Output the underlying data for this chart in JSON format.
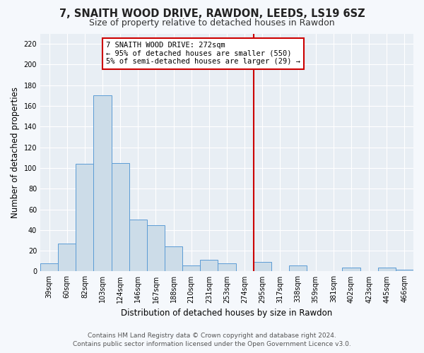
{
  "title": "7, SNAITH WOOD DRIVE, RAWDON, LEEDS, LS19 6SZ",
  "subtitle": "Size of property relative to detached houses in Rawdon",
  "xlabel": "Distribution of detached houses by size in Rawdon",
  "ylabel": "Number of detached properties",
  "bar_labels": [
    "39sqm",
    "60sqm",
    "82sqm",
    "103sqm",
    "124sqm",
    "146sqm",
    "167sqm",
    "188sqm",
    "210sqm",
    "231sqm",
    "253sqm",
    "274sqm",
    "295sqm",
    "317sqm",
    "338sqm",
    "359sqm",
    "381sqm",
    "402sqm",
    "423sqm",
    "445sqm",
    "466sqm"
  ],
  "bar_values": [
    8,
    27,
    104,
    170,
    105,
    50,
    45,
    24,
    6,
    11,
    8,
    0,
    9,
    0,
    6,
    0,
    0,
    4,
    0,
    4,
    2
  ],
  "bar_color": "#ccdce8",
  "bar_edge_color": "#5b9bd5",
  "vline_x_index": 11,
  "vline_color": "#cc0000",
  "annotation_title": "7 SNAITH WOOD DRIVE: 272sqm",
  "annotation_line1": "← 95% of detached houses are smaller (550)",
  "annotation_line2": "5% of semi-detached houses are larger (29) →",
  "annotation_box_color": "#ffffff",
  "annotation_box_edge": "#cc0000",
  "footer_line1": "Contains HM Land Registry data © Crown copyright and database right 2024.",
  "footer_line2": "Contains public sector information licensed under the Open Government Licence v3.0.",
  "ylim": [
    0,
    230
  ],
  "yticks": [
    0,
    20,
    40,
    60,
    80,
    100,
    120,
    140,
    160,
    180,
    200,
    220
  ],
  "plot_bg_color": "#e8eef4",
  "fig_bg_color": "#f5f8fc",
  "grid_color": "#ffffff",
  "title_fontsize": 10.5,
  "subtitle_fontsize": 9,
  "axis_label_fontsize": 8.5,
  "tick_fontsize": 7,
  "annotation_fontsize": 7.5,
  "footer_fontsize": 6.5
}
